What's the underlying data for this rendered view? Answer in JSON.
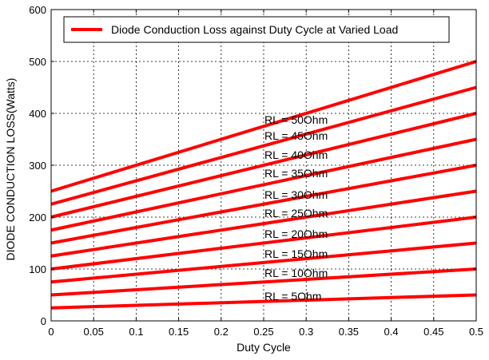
{
  "chart_data": {
    "type": "line",
    "title": "",
    "xlabel": "Duty Cycle",
    "ylabel": "DIODE CONDUCTION LOSS(Watts)",
    "xlim": [
      0,
      0.5
    ],
    "ylim": [
      0,
      600
    ],
    "xticks": [
      0,
      0.05,
      0.1,
      0.15,
      0.2,
      0.25,
      0.3,
      0.35,
      0.4,
      0.45,
      0.5
    ],
    "xtick_labels": [
      "0",
      "0.05",
      "0.1",
      "0.15",
      "0.2",
      "0.25",
      "0.3",
      "0.35",
      "0.4",
      "0.45",
      "0.5"
    ],
    "yticks": [
      0,
      100,
      200,
      300,
      400,
      500,
      600
    ],
    "ytick_labels": [
      "0",
      "100",
      "200",
      "300",
      "400",
      "500",
      "600"
    ],
    "grid": true,
    "line_color": "#ff0000",
    "legend": {
      "position": "top",
      "entries": [
        "Diode Conduction Loss against Duty Cycle at Varied Load"
      ]
    },
    "x": [
      0,
      0.5
    ],
    "series": [
      {
        "name": "RL = 50Ohm",
        "values": [
          250,
          500
        ]
      },
      {
        "name": "RL = 45Ohm",
        "values": [
          225,
          450
        ]
      },
      {
        "name": "RL = 40Ohm",
        "values": [
          200,
          400
        ]
      },
      {
        "name": "RL = 35Ohm",
        "values": [
          175,
          350
        ]
      },
      {
        "name": "RL = 30Ohm",
        "values": [
          150,
          300
        ]
      },
      {
        "name": "RL = 25Ohm",
        "values": [
          125,
          250
        ]
      },
      {
        "name": "RL = 20Ohm",
        "values": [
          100,
          200
        ]
      },
      {
        "name": "RL = 15Ohm",
        "values": [
          75,
          150
        ]
      },
      {
        "name": "RL = 10Ohm",
        "values": [
          50,
          100
        ]
      },
      {
        "name": "RL = 5Ohm",
        "values": [
          25,
          50
        ]
      }
    ]
  }
}
